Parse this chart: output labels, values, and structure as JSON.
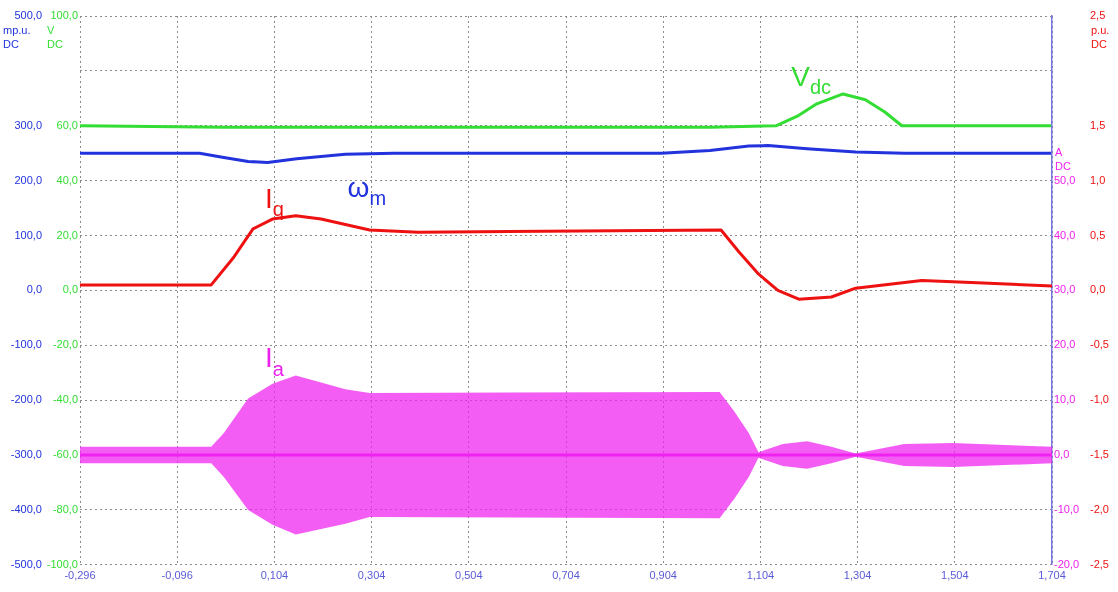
{
  "chart_data": [
    {
      "type": "line",
      "xlim": [
        -0.296,
        1.704
      ],
      "xticks": [
        {
          "value": -0.296,
          "label": "-0,296"
        },
        {
          "value": -0.096,
          "label": "-0,096"
        },
        {
          "value": 0.104,
          "label": "0,104"
        },
        {
          "value": 0.304,
          "label": "0,304"
        },
        {
          "value": 0.504,
          "label": "0,504"
        },
        {
          "value": 0.704,
          "label": "0,704"
        },
        {
          "value": 0.904,
          "label": "0,904"
        },
        {
          "value": 1.104,
          "label": "1,104"
        },
        {
          "value": 1.304,
          "label": "1,304"
        },
        {
          "value": 1.504,
          "label": "1,504"
        },
        {
          "value": 1.704,
          "label": "1,704"
        }
      ],
      "ylabel": "mp.u. DC",
      "ylim": [
        -500,
        500
      ],
      "yticks": [
        {
          "value": -500,
          "label": "-500,0"
        },
        {
          "value": -400,
          "label": "-400,0"
        },
        {
          "value": -300,
          "label": "-300,0"
        },
        {
          "value": -200,
          "label": "-200,0"
        },
        {
          "value": -100,
          "label": "-100,0"
        },
        {
          "value": 0,
          "label": "0,0"
        },
        {
          "value": 100,
          "label": "100,0"
        },
        {
          "value": 200,
          "label": "200,0"
        },
        {
          "value": 300,
          "label": "300,0"
        },
        {
          "value": 400,
          "label": null
        },
        {
          "value": 500,
          "label": "500,0"
        }
      ],
      "y3label": "V DC",
      "y3lim": [
        -100,
        100
      ],
      "y3ticks": [
        {
          "value": -100,
          "label": "-100,0"
        },
        {
          "value": -80,
          "label": "-80,0"
        },
        {
          "value": -60,
          "label": "-60,0"
        },
        {
          "value": -40,
          "label": "-40,0"
        },
        {
          "value": -20,
          "label": "-20,0"
        },
        {
          "value": 0,
          "label": "0,0"
        },
        {
          "value": 20,
          "label": "20,0"
        },
        {
          "value": 40,
          "label": "40,0"
        },
        {
          "value": 60,
          "label": "60,0"
        },
        {
          "value": 80,
          "label": null
        },
        {
          "value": 100,
          "label": "100,0"
        }
      ],
      "grid": true,
      "legend": false,
      "marker": "none",
      "line_style": "solid",
      "series": [
        {
          "name": "V$_{dc}$",
          "color": "#33dd33",
          "axis": "y3",
          "x": [
            -0.296,
            0.0,
            0.5,
            1.0,
            1.136,
            1.18,
            1.22,
            1.274,
            1.32,
            1.36,
            1.395,
            1.5,
            1.704
          ],
          "values": [
            60,
            59.5,
            59.5,
            59.5,
            60,
            63.5,
            68,
            71.6,
            69.5,
            65,
            60,
            60,
            60
          ]
        },
        {
          "name": "ω$_{m}$",
          "color": "#2233dd",
          "x": [
            -0.296,
            -0.05,
            0.0,
            0.05,
            0.09,
            0.15,
            0.25,
            0.35,
            0.9,
            1.0,
            1.08,
            1.12,
            1.2,
            1.3,
            1.4,
            1.704
          ],
          "values": [
            250,
            250,
            242,
            235,
            233,
            240,
            248,
            250,
            250,
            255,
            263,
            264,
            258,
            252,
            250,
            250
          ]
        }
      ]
    },
    {
      "type": "line",
      "xlim": [
        -0.296,
        1.704
      ],
      "tick_labels": "y",
      "y2label": "p.u. DC",
      "y2lim": [
        -2.5,
        2.5
      ],
      "y2ticks": [
        {
          "value": -2.5,
          "label": "-2,5"
        },
        {
          "value": -2,
          "label": "-2,0"
        },
        {
          "value": -1.5,
          "label": "-1,5"
        },
        {
          "value": -1,
          "label": "-1,0"
        },
        {
          "value": -0.5,
          "label": "-0,5"
        },
        {
          "value": 0,
          "label": "0,0"
        },
        {
          "value": 0.5,
          "label": "0,5"
        },
        {
          "value": 1,
          "label": "1,0"
        },
        {
          "value": 1.5,
          "label": "1,5"
        },
        {
          "value": 2.5,
          "label": "2,5"
        }
      ],
      "y3label": "A DC",
      "y3lim": [
        -20,
        80
      ],
      "y3ticks": [
        {
          "value": -20,
          "label": "-20,0"
        },
        {
          "value": -10,
          "label": "-10,0"
        },
        {
          "value": 0,
          "label": "0,0"
        },
        {
          "value": 10,
          "label": "10,0"
        },
        {
          "value": 20,
          "label": "20,0"
        },
        {
          "value": 30,
          "label": "30,0"
        },
        {
          "value": 40,
          "label": "40,0"
        },
        {
          "value": 50,
          "label": "50,0"
        }
      ],
      "legend": false,
      "marker": "none",
      "line_style": "solid",
      "series": [
        {
          "name": "I$_{q}$",
          "color": "#ee1111",
          "axis": "y2",
          "x": [
            -0.296,
            -0.026,
            0.02,
            0.06,
            0.1,
            0.148,
            0.2,
            0.3,
            0.4,
            1.023,
            1.06,
            1.1,
            1.14,
            1.183,
            1.25,
            1.3,
            1.436,
            1.55,
            1.704
          ],
          "values": [
            0.05,
            0.05,
            0.3,
            0.56,
            0.65,
            0.68,
            0.65,
            0.55,
            0.53,
            0.55,
            0.35,
            0.15,
            0,
            -0.08,
            -0.06,
            0.02,
            0.09,
            0.07,
            0.04
          ]
        },
        {
          "name": "I$_{a}$",
          "color": "#ee22ee",
          "axis": "y3",
          "x": [
            -0.296,
            -0.026,
            0.0,
            0.05,
            0.1,
            0.148,
            0.25,
            0.3,
            1.02,
            1.05,
            1.08,
            1.1,
            1.15,
            1.2,
            1.25,
            1.3,
            1.4,
            1.5,
            1.704
          ],
          "values": [
            0,
            0,
            0,
            0,
            0,
            0,
            0,
            0,
            0,
            0,
            0,
            0,
            0,
            0,
            0,
            0,
            0,
            0,
            0
          ],
          "upper": [
            1.5,
            1.5,
            4,
            10.3,
            13,
            14.5,
            12,
            11.3,
            11.5,
            8,
            4,
            0.5,
            2,
            2.5,
            1.5,
            0.3,
            2,
            2.2,
            1.5
          ],
          "lower": [
            -1.5,
            -1.5,
            -4,
            -10,
            -12.7,
            -14.5,
            -12.5,
            -11.3,
            -11.5,
            -8,
            -4,
            -0.5,
            -2,
            -2.5,
            -1.5,
            -0.3,
            -2,
            -2.2,
            -1.5
          ]
        }
      ]
    }
  ]
}
